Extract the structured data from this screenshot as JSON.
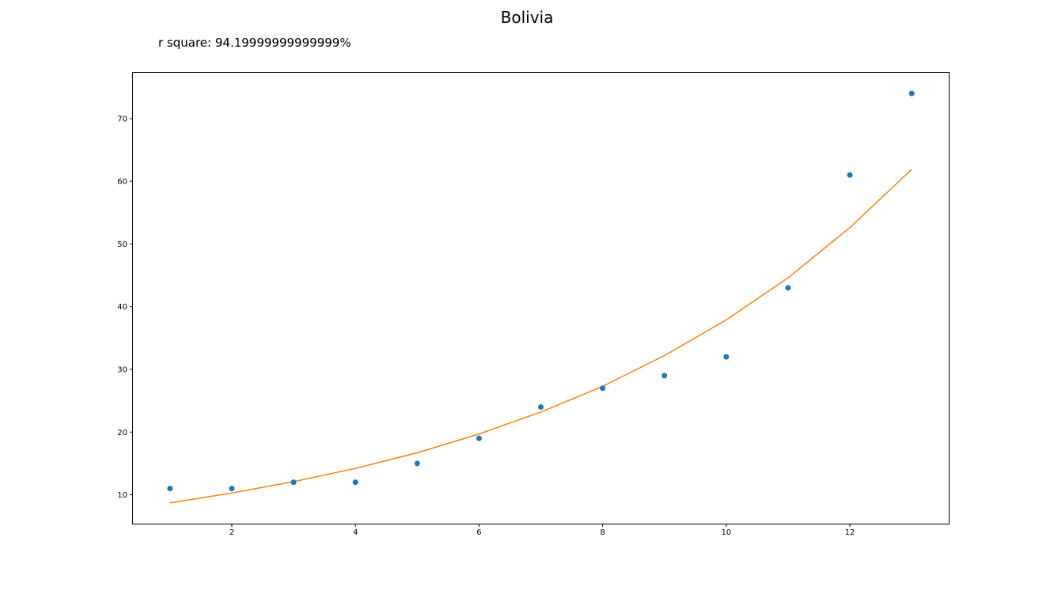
{
  "chart_data": {
    "type": "scatter",
    "title": "Bolivia",
    "subtitle": "r square: 94.19999999999999%",
    "xlabel": "",
    "ylabel": "",
    "xlim": [
      0.4,
      13.6
    ],
    "ylim": [
      5.4,
      77.3
    ],
    "xticks": [
      2,
      4,
      6,
      8,
      10,
      12
    ],
    "yticks": [
      10,
      20,
      30,
      40,
      50,
      60,
      70
    ],
    "grid": false,
    "series": [
      {
        "kind": "scatter",
        "color": "#1f77b4",
        "x": [
          1,
          2,
          3,
          4,
          5,
          6,
          7,
          8,
          9,
          10,
          11,
          12,
          13
        ],
        "y": [
          11,
          11,
          12,
          12,
          15,
          19,
          24,
          27,
          29,
          32,
          43,
          61,
          74
        ]
      },
      {
        "kind": "line",
        "color": "#ff7f0e",
        "x": [
          1,
          2,
          3,
          4,
          5,
          6,
          7,
          8,
          9,
          10,
          11,
          12,
          13
        ],
        "y": [
          8.7,
          10.3,
          12.1,
          14.2,
          16.7,
          19.7,
          23.2,
          27.3,
          32.2,
          37.9,
          44.6,
          52.6,
          61.9
        ]
      }
    ]
  }
}
